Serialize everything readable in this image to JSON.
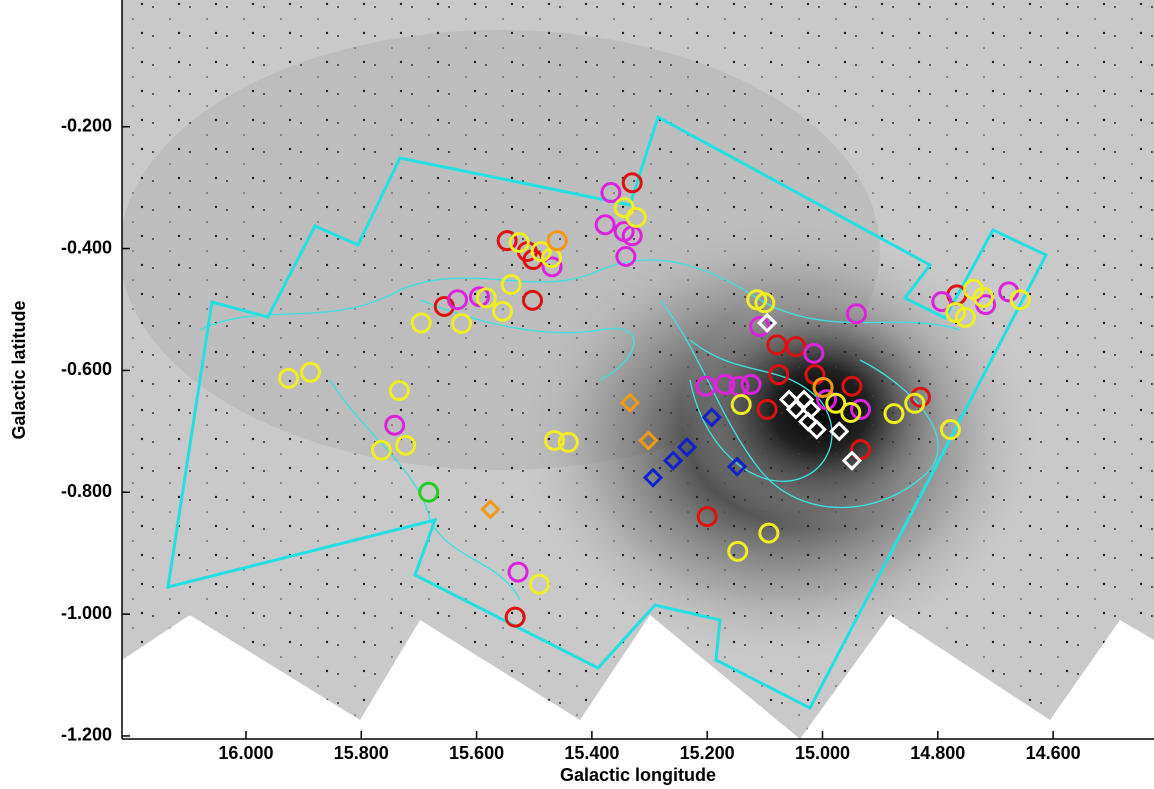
{
  "chart_data": {
    "type": "scatter",
    "x_label": "Galactic longitude",
    "y_label": "Galactic latitude",
    "xlim": [
      16.215,
      14.425
    ],
    "ylim": [
      -1.205,
      0.008
    ],
    "xticks": [
      {
        "value": 16.0,
        "label": "16.000"
      },
      {
        "value": 15.8,
        "label": "15.800"
      },
      {
        "value": 15.6,
        "label": "15.600"
      },
      {
        "value": 15.4,
        "label": "15.400"
      },
      {
        "value": 15.2,
        "label": "15.200"
      },
      {
        "value": 15.0,
        "label": "15.000"
      },
      {
        "value": 14.8,
        "label": "14.800"
      },
      {
        "value": 14.6,
        "label": "14.600"
      }
    ],
    "yticks": [
      {
        "value": -0.2,
        "label": "-0.200"
      },
      {
        "value": -0.4,
        "label": "-0.400"
      },
      {
        "value": -0.6,
        "label": "-0.600"
      },
      {
        "value": -0.8,
        "label": "-0.800"
      },
      {
        "value": -1.0,
        "label": "-1.000"
      },
      {
        "value": -1.2,
        "label": "-1.200"
      }
    ],
    "series": [
      {
        "color": "#dd1111",
        "marker": "circle",
        "x": [
          15.33,
          15.547,
          15.512,
          15.502,
          15.656,
          15.503,
          15.079,
          15.046,
          15.076,
          15.013,
          15.096,
          14.934,
          14.83,
          14.767,
          15.2,
          15.533,
          14.949
        ],
        "y": [
          -0.292,
          -0.387,
          -0.405,
          -0.418,
          -0.495,
          -0.485,
          -0.558,
          -0.561,
          -0.607,
          -0.607,
          -0.664,
          -0.73,
          -0.644,
          -0.476,
          -0.84,
          -1.005,
          -0.626
        ]
      },
      {
        "color": "#dd22dd",
        "marker": "circle",
        "x": [
          15.367,
          15.377,
          15.344,
          15.33,
          15.341,
          15.469,
          15.633,
          15.595,
          14.941,
          14.793,
          14.717,
          14.677,
          15.109,
          15.015,
          15.202,
          15.145,
          15.124,
          15.169,
          14.993,
          14.934,
          15.742,
          15.528
        ],
        "y": [
          -0.308,
          -0.361,
          -0.372,
          -0.379,
          -0.413,
          -0.43,
          -0.484,
          -0.479,
          -0.507,
          -0.487,
          -0.492,
          -0.471,
          -0.528,
          -0.572,
          -0.626,
          -0.626,
          -0.623,
          -0.623,
          -0.648,
          -0.664,
          -0.69,
          -0.931
        ]
      },
      {
        "color": "#eeee22",
        "marker": "circle",
        "x": [
          15.344,
          15.323,
          15.526,
          15.488,
          15.47,
          15.54,
          15.555,
          15.583,
          15.626,
          15.696,
          15.926,
          15.888,
          15.734,
          15.765,
          15.723,
          15.465,
          15.441,
          15.114,
          15.1,
          15.141,
          14.977,
          14.951,
          14.876,
          14.84,
          14.778,
          14.769,
          14.752,
          14.738,
          14.721,
          14.657,
          15.491,
          15.093,
          15.147
        ],
        "y": [
          -0.333,
          -0.349,
          -0.39,
          -0.405,
          -0.415,
          -0.459,
          -0.503,
          -0.481,
          -0.523,
          -0.522,
          -0.613,
          -0.603,
          -0.633,
          -0.731,
          -0.723,
          -0.715,
          -0.718,
          -0.484,
          -0.489,
          -0.656,
          -0.654,
          -0.669,
          -0.671,
          -0.654,
          -0.697,
          -0.505,
          -0.513,
          -0.467,
          -0.48,
          -0.484,
          -0.951,
          -0.867,
          -0.897
        ]
      },
      {
        "color": "#f09a10",
        "marker": "circle",
        "x": [
          15.46,
          14.999
        ],
        "y": [
          -0.387,
          -0.628
        ]
      },
      {
        "color": "#22cc22",
        "marker": "circle",
        "x": [
          15.683
        ],
        "y": [
          -0.8
        ]
      },
      {
        "color": "#f09a10",
        "marker": "diamond",
        "x": [
          15.334,
          15.302,
          15.576
        ],
        "y": [
          -0.653,
          -0.715,
          -0.828
        ]
      },
      {
        "color": "#1122cc",
        "marker": "diamond",
        "x": [
          15.192,
          15.235,
          15.259,
          15.294,
          15.148
        ],
        "y": [
          -0.677,
          -0.726,
          -0.748,
          -0.776,
          -0.758
        ]
      },
      {
        "color": "#ffffff",
        "marker": "diamond",
        "x": [
          15.096,
          15.058,
          15.032,
          15.025,
          15.01,
          14.971,
          14.949,
          15.02,
          15.046
        ],
        "y": [
          -0.522,
          -0.648,
          -0.648,
          -0.684,
          -0.697,
          -0.7,
          -0.748,
          -0.664,
          -0.664
        ]
      }
    ]
  }
}
